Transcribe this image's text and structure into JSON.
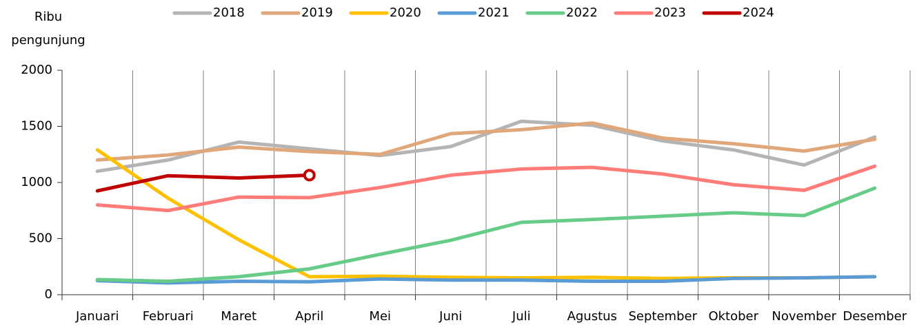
{
  "chart_data": {
    "type": "line",
    "y_label": "Ribu pengunjung",
    "categories": [
      "Januari",
      "Februari",
      "Maret",
      "April",
      "Mei",
      "Juni",
      "Juli",
      "Agustus",
      "September",
      "Oktober",
      "November",
      "Desember"
    ],
    "series": [
      {
        "name": "2018",
        "color": "#b4b4b4",
        "values": [
          1100,
          1200,
          1360,
          1300,
          1240,
          1320,
          1545,
          1510,
          1370,
          1290,
          1155,
          1405
        ]
      },
      {
        "name": "2019",
        "color": "#dfa77a",
        "values": [
          1200,
          1245,
          1315,
          1275,
          1250,
          1435,
          1470,
          1530,
          1395,
          1345,
          1280,
          1385
        ]
      },
      {
        "name": "2020",
        "color": "#ffc000",
        "values": [
          1290,
          860,
          490,
          160,
          165,
          155,
          150,
          155,
          145,
          150,
          150,
          160
        ]
      },
      {
        "name": "2021",
        "color": "#5b9bd5",
        "values": [
          125,
          105,
          120,
          115,
          140,
          130,
          130,
          120,
          120,
          145,
          150,
          160
        ]
      },
      {
        "name": "2022",
        "color": "#66cc88",
        "values": [
          135,
          120,
          160,
          230,
          360,
          485,
          645,
          670,
          700,
          730,
          705,
          950
        ]
      },
      {
        "name": "2023",
        "color": "#ff7c78",
        "values": [
          800,
          750,
          870,
          865,
          955,
          1065,
          1120,
          1135,
          1075,
          980,
          930,
          1145
        ]
      },
      {
        "name": "2024",
        "color": "#c00000",
        "values": [
          925,
          1060,
          1040,
          1065,
          null,
          null,
          null,
          null,
          null,
          null,
          null,
          null
        ]
      }
    ],
    "ylim": [
      0,
      2000
    ],
    "yticks": [
      0,
      500,
      1000,
      1500,
      2000
    ],
    "grid": "vertical",
    "legend": "top"
  }
}
